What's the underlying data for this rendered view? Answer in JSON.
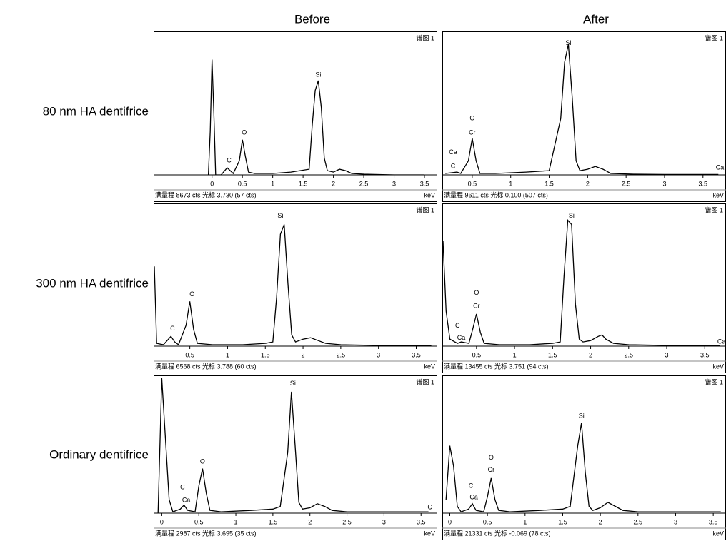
{
  "figure": {
    "columns": [
      "Before",
      "After"
    ],
    "rows": [
      "80 nm HA dentifrice",
      "300 nm HA dentifrice",
      "Ordinary dentifrice"
    ]
  },
  "chart_data": [
    {
      "type": "line",
      "label": "谱图 1",
      "xlabel": "keV",
      "status": "满量程 8673 cts 光标 3.730 (57 cts)",
      "color": "#000000",
      "xlim": [
        -0.95,
        3.7
      ],
      "ylim": [
        0,
        8673
      ],
      "xticks": [
        0,
        0.5,
        1,
        1.5,
        2,
        2.5,
        3,
        3.5
      ],
      "x": [
        -0.06,
        -0.03,
        0.0,
        0.03,
        0.06,
        0.15,
        0.25,
        0.3,
        0.35,
        0.45,
        0.5,
        0.55,
        0.6,
        0.7,
        1.0,
        1.3,
        1.6,
        1.65,
        1.7,
        1.75,
        1.8,
        1.85,
        1.9,
        2.0,
        2.1,
        2.2,
        2.3,
        2.5,
        3.0,
        3.5
      ],
      "values": [
        0,
        2689,
        7112,
        3903,
        0,
        0,
        434,
        260,
        87,
        867,
        2168,
        1127,
        173,
        87,
        87,
        173,
        347,
        3036,
        5204,
        5811,
        4163,
        1041,
        260,
        173,
        347,
        260,
        87,
        43,
        0,
        0
      ],
      "annotations": [
        {
          "text": "C",
          "x": 0.28,
          "y": 867
        },
        {
          "text": "O",
          "x": 0.53,
          "y": 2600
        },
        {
          "text": "Si",
          "x": 1.75,
          "y": 6160
        }
      ]
    },
    {
      "type": "line",
      "label": "谱图 1",
      "xlabel": "keV",
      "status": "满量程 9611 cts 光标 0.100 (507 cts)",
      "color": "#000000",
      "xlim": [
        0.12,
        3.79
      ],
      "ylim": [
        0,
        9611
      ],
      "xticks": [
        0.5,
        1,
        1.5,
        2,
        2.5,
        3,
        3.5
      ],
      "x": [
        0.15,
        0.3,
        0.35,
        0.45,
        0.5,
        0.55,
        0.6,
        0.8,
        1.2,
        1.5,
        1.65,
        1.7,
        1.75,
        1.8,
        1.85,
        1.9,
        2.0,
        2.1,
        2.2,
        2.3,
        2.6,
        3.0,
        3.7
      ],
      "values": [
        96,
        192,
        96,
        961,
        2499,
        961,
        96,
        96,
        192,
        288,
        3844,
        7689,
        8938,
        5286,
        961,
        288,
        384,
        577,
        384,
        96,
        48,
        29,
        29
      ],
      "annotations": [
        {
          "text": "C",
          "x": 0.25,
          "y": 577
        },
        {
          "text": "Ca",
          "x": 0.25,
          "y": 1538
        },
        {
          "text": "Cr",
          "x": 0.5,
          "y": 2883
        },
        {
          "text": "O",
          "x": 0.5,
          "y": 3844
        },
        {
          "text": "Si",
          "x": 1.75,
          "y": 9000
        },
        {
          "text": "Ca",
          "x": 3.72,
          "y": 480
        }
      ]
    },
    {
      "type": "line",
      "label": "谱图 1",
      "xlabel": "keV",
      "status": "满量程 6568 cts 光标 3.788 (60 cts)",
      "color": "#000000",
      "xlim": [
        0.03,
        3.77
      ],
      "ylim": [
        0,
        6568
      ],
      "xticks": [
        0.5,
        1,
        1.5,
        2,
        2.5,
        3,
        3.5
      ],
      "x": [
        0.03,
        0.06,
        0.15,
        0.25,
        0.3,
        0.35,
        0.45,
        0.5,
        0.55,
        0.6,
        0.8,
        1.2,
        1.5,
        1.6,
        1.65,
        1.7,
        1.75,
        1.8,
        1.85,
        1.9,
        2.0,
        2.1,
        2.2,
        2.3,
        2.5,
        3.0,
        3.7
      ],
      "values": [
        3744,
        131,
        66,
        460,
        197,
        66,
        985,
        2102,
        788,
        131,
        66,
        66,
        131,
        197,
        2299,
        5254,
        5714,
        2956,
        525,
        197,
        328,
        394,
        263,
        131,
        66,
        33,
        33
      ],
      "annotations": [
        {
          "text": "C",
          "x": 0.27,
          "y": 821
        },
        {
          "text": "O",
          "x": 0.53,
          "y": 2430
        },
        {
          "text": "Si",
          "x": 1.7,
          "y": 6108
        }
      ]
    },
    {
      "type": "line",
      "label": "谱图 1",
      "xlabel": "keV",
      "status": "满量程 13455 cts 光标 3.751 (94 cts)",
      "color": "#000000",
      "xlim": [
        0.06,
        3.77
      ],
      "ylim": [
        0,
        13455
      ],
      "xticks": [
        0.5,
        1,
        1.5,
        2,
        2.5,
        3,
        3.5
      ],
      "x": [
        0.06,
        0.1,
        0.15,
        0.25,
        0.3,
        0.4,
        0.45,
        0.5,
        0.55,
        0.6,
        0.8,
        1.2,
        1.5,
        1.6,
        1.65,
        1.7,
        1.75,
        1.8,
        1.85,
        1.9,
        2.0,
        2.1,
        2.15,
        2.2,
        2.3,
        2.5,
        3.0,
        3.7
      ],
      "values": [
        10091,
        3364,
        673,
        269,
        404,
        269,
        1615,
        3095,
        1346,
        269,
        135,
        135,
        269,
        404,
        6728,
        12110,
        11706,
        4037,
        673,
        404,
        538,
        942,
        1076,
        673,
        269,
        135,
        67,
        67
      ],
      "annotations": [
        {
          "text": "C",
          "x": 0.25,
          "y": 1964
        },
        {
          "text": "Ca",
          "x": 0.3,
          "y": 770
        },
        {
          "text": "Cr",
          "x": 0.5,
          "y": 3850
        },
        {
          "text": "O",
          "x": 0.5,
          "y": 5113
        },
        {
          "text": "Si",
          "x": 1.75,
          "y": 12513
        },
        {
          "text": "Ca",
          "x": 3.72,
          "y": 420
        }
      ]
    },
    {
      "type": "line",
      "label": "谱图 1",
      "xlabel": "keV",
      "status": "满量程 2987 cts 光标 3.695 (35 cts)",
      "color": "#000000",
      "xlim": [
        -0.1,
        3.71
      ],
      "ylim": [
        0,
        2987
      ],
      "xticks": [
        0,
        0.5,
        1,
        1.5,
        2,
        2.5,
        3,
        3.5
      ],
      "x": [
        -0.05,
        0.0,
        0.1,
        0.15,
        0.25,
        0.3,
        0.35,
        0.45,
        0.5,
        0.55,
        0.6,
        0.65,
        0.8,
        1.2,
        1.5,
        1.6,
        1.7,
        1.75,
        1.8,
        1.85,
        1.9,
        2.0,
        2.1,
        2.2,
        2.3,
        2.5,
        3.0,
        3.6
      ],
      "values": [
        0,
        2987,
        299,
        30,
        90,
        179,
        60,
        30,
        597,
        986,
        448,
        60,
        30,
        60,
        90,
        149,
        1344,
        2688,
        1494,
        239,
        90,
        119,
        209,
        149,
        60,
        30,
        30,
        30
      ],
      "annotations": [
        {
          "text": "C",
          "x": 0.28,
          "y": 567
        },
        {
          "text": "Ca",
          "x": 0.33,
          "y": 284
        },
        {
          "text": "O",
          "x": 0.55,
          "y": 1135
        },
        {
          "text": "Si",
          "x": 1.77,
          "y": 2867
        },
        {
          "text": "C",
          "x": 3.62,
          "y": 126
        }
      ]
    },
    {
      "type": "line",
      "label": "谱图 1",
      "xlabel": "keV",
      "status": "满量程 21331 cts 光标 -0.069 (78 cts)",
      "color": "#000000",
      "xlim": [
        -0.09,
        3.66
      ],
      "ylim": [
        0,
        21331
      ],
      "xticks": [
        0,
        0.5,
        1,
        1.5,
        2,
        2.5,
        3,
        3.5
      ],
      "x": [
        -0.05,
        0.0,
        0.05,
        0.1,
        0.15,
        0.25,
        0.3,
        0.35,
        0.45,
        0.5,
        0.55,
        0.6,
        0.65,
        0.8,
        1.2,
        1.5,
        1.6,
        1.7,
        1.75,
        1.8,
        1.85,
        1.9,
        2.0,
        2.1,
        2.2,
        2.3,
        2.5,
        3.0,
        3.6
      ],
      "values": [
        2133,
        10666,
        7466,
        1067,
        213,
        640,
        1493,
        427,
        213,
        2560,
        5546,
        2133,
        427,
        213,
        427,
        640,
        1067,
        10666,
        14292,
        6399,
        1067,
        427,
        853,
        1707,
        1067,
        427,
        213,
        213,
        213
      ],
      "annotations": [
        {
          "text": "C",
          "x": 0.28,
          "y": 4266
        },
        {
          "text": "Ca",
          "x": 0.32,
          "y": 2475
        },
        {
          "text": "Cr",
          "x": 0.55,
          "y": 6826
        },
        {
          "text": "O",
          "x": 0.55,
          "y": 8746
        },
        {
          "text": "Si",
          "x": 1.75,
          "y": 15358
        }
      ]
    }
  ]
}
